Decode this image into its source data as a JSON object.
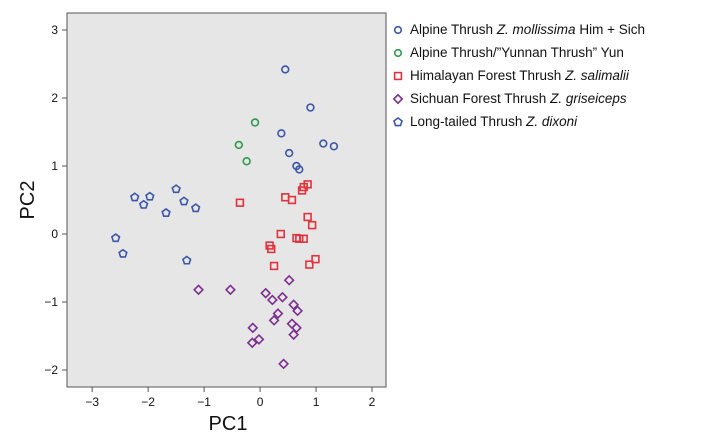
{
  "chart_data": {
    "type": "scatter",
    "xlabel": "PC1",
    "ylabel": "PC2",
    "xlim": [
      -3.45,
      2.25
    ],
    "ylim": [
      -2.25,
      3.25
    ],
    "xticks": [
      -3,
      -2,
      -1,
      0,
      1,
      2
    ],
    "yticks": [
      -2,
      -1,
      0,
      1,
      2,
      3
    ],
    "xtick_labels": [
      "−3",
      "−2",
      "−1",
      "0",
      "1",
      "2"
    ],
    "ytick_labels": [
      "−2",
      "−1",
      "0",
      "1",
      "2",
      "3"
    ],
    "plot_background": "#e6e6e6",
    "grid": false,
    "legend_position": "right, outside plot",
    "series": [
      {
        "name": "Alpine Thrush Z. mollissima Him + Sich",
        "legend_parts": [
          "Alpine Thrush ",
          "Z. mollissima",
          " Him + Sich"
        ],
        "marker": "circle",
        "color": "#3a57a8",
        "points": [
          [
            0.45,
            2.42
          ],
          [
            0.9,
            1.86
          ],
          [
            0.38,
            1.48
          ],
          [
            1.13,
            1.33
          ],
          [
            1.32,
            1.29
          ],
          [
            0.52,
            1.19
          ],
          [
            0.65,
            1.0
          ],
          [
            0.7,
            0.95
          ]
        ]
      },
      {
        "name": "Alpine Thrush/\"Yunnan Thrush\" Yun",
        "legend_parts": [
          "Alpine Thrush/”Yunnan Thrush” Yun",
          "",
          ""
        ],
        "marker": "circle",
        "color": "#2f9a4a",
        "points": [
          [
            -0.09,
            1.64
          ],
          [
            -0.38,
            1.31
          ],
          [
            -0.24,
            1.07
          ]
        ]
      },
      {
        "name": "Himalayan Forest Thrush Z. salimalii",
        "legend_parts": [
          "Himalayan Forest Thrush ",
          "Z. salimalii",
          ""
        ],
        "marker": "square",
        "color": "#e0333e",
        "points": [
          [
            -0.36,
            0.46
          ],
          [
            0.45,
            0.54
          ],
          [
            0.57,
            0.5
          ],
          [
            0.75,
            0.64
          ],
          [
            0.78,
            0.69
          ],
          [
            0.85,
            0.73
          ],
          [
            0.85,
            0.25
          ],
          [
            0.93,
            0.13
          ],
          [
            0.37,
            0.0
          ],
          [
            0.65,
            -0.06
          ],
          [
            0.7,
            -0.07
          ],
          [
            0.78,
            -0.07
          ],
          [
            0.17,
            -0.17
          ],
          [
            0.2,
            -0.22
          ],
          [
            0.25,
            -0.47
          ],
          [
            0.88,
            -0.45
          ],
          [
            0.99,
            -0.37
          ]
        ]
      },
      {
        "name": "Sichuan Forest Thrush Z. griseiceps",
        "legend_parts": [
          "Sichuan Forest Thrush ",
          "Z. griseiceps",
          ""
        ],
        "marker": "diamond",
        "color": "#7b2f8e",
        "points": [
          [
            -1.1,
            -0.82
          ],
          [
            -0.53,
            -0.82
          ],
          [
            0.52,
            -0.68
          ],
          [
            0.1,
            -0.87
          ],
          [
            0.22,
            -0.97
          ],
          [
            0.4,
            -0.93
          ],
          [
            0.6,
            -1.04
          ],
          [
            0.67,
            -1.13
          ],
          [
            0.32,
            -1.17
          ],
          [
            0.25,
            -1.27
          ],
          [
            0.57,
            -1.32
          ],
          [
            -0.13,
            -1.38
          ],
          [
            0.65,
            -1.38
          ],
          [
            0.6,
            -1.48
          ],
          [
            -0.02,
            -1.55
          ],
          [
            -0.14,
            -1.6
          ],
          [
            0.42,
            -1.91
          ]
        ]
      },
      {
        "name": "Long-tailed Thrush Z. dixoni",
        "legend_parts": [
          "Long-tailed Thrush ",
          "Z. dixoni",
          ""
        ],
        "marker": "pentagon",
        "color": "#3a57a8",
        "points": [
          [
            -1.5,
            0.66
          ],
          [
            -2.24,
            0.54
          ],
          [
            -1.97,
            0.55
          ],
          [
            -1.36,
            0.48
          ],
          [
            -2.08,
            0.43
          ],
          [
            -1.15,
            0.38
          ],
          [
            -1.68,
            0.31
          ],
          [
            -2.58,
            -0.06
          ],
          [
            -2.45,
            -0.29
          ],
          [
            -1.31,
            -0.39
          ]
        ]
      }
    ]
  }
}
